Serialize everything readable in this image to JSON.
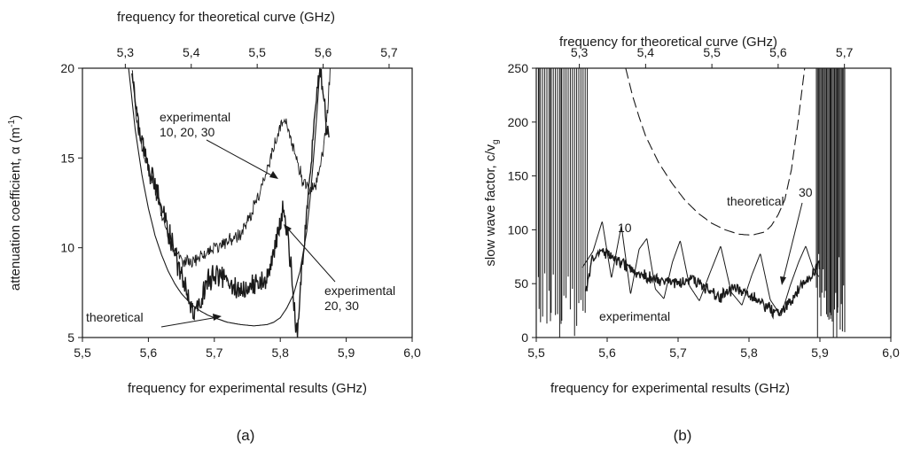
{
  "chart_data": [
    {
      "type": "line",
      "panel_label": "(a)",
      "xlabel": "frequency for experimental results (GHz)",
      "x_top_label": "frequency for theoretical curve (GHz)",
      "ylabel_main": "attenuation coefficient, α  (m",
      "ylabel_sup": "-1",
      "ylabel_end": ")",
      "xlim": [
        5.5,
        6.0
      ],
      "x_top_lim": [
        5.235,
        5.735
      ],
      "ylim": [
        5,
        20
      ],
      "xticks": [
        "5,5",
        "5,6",
        "5,7",
        "5,8",
        "5,9",
        "6,0"
      ],
      "xtick_values": [
        5.5,
        5.6,
        5.7,
        5.8,
        5.9,
        6.0
      ],
      "x_top_ticks": [
        "5,3",
        "5,4",
        "5,5",
        "5,6",
        "5,7"
      ],
      "x_top_tick_values": [
        5.3,
        5.4,
        5.5,
        5.6,
        5.7
      ],
      "yticks": [
        "5",
        "10",
        "15",
        "20"
      ],
      "ytick_values": [
        5,
        10,
        15,
        20
      ],
      "grid": false,
      "series": [
        {
          "id": "exp-10-20-30",
          "style": "noisy-thin",
          "x": [
            5.575,
            5.578,
            5.585,
            5.595,
            5.605,
            5.615,
            5.625,
            5.635,
            5.645,
            5.655,
            5.665,
            5.675,
            5.685,
            5.695,
            5.705,
            5.715,
            5.725,
            5.735,
            5.745,
            5.755,
            5.765,
            5.775,
            5.785,
            5.795,
            5.805,
            5.815,
            5.825,
            5.835,
            5.845,
            5.855,
            5.865,
            5.872,
            5.876
          ],
          "y": [
            20,
            18.5,
            16.5,
            15,
            13.8,
            12.6,
            11.3,
            10.2,
            9.6,
            9.3,
            9.2,
            9.4,
            9.6,
            9.9,
            10.1,
            10.3,
            10.5,
            10.6,
            11.1,
            11.8,
            12.8,
            13.8,
            14.9,
            16.2,
            17.3,
            16.3,
            14.8,
            13.6,
            13.2,
            13.6,
            15.4,
            17.8,
            20
          ]
        },
        {
          "id": "exp-20-30",
          "style": "noisy-thick",
          "x": [
            5.575,
            5.582,
            5.59,
            5.6,
            5.61,
            5.62,
            5.63,
            5.64,
            5.65,
            5.66,
            5.67,
            5.68,
            5.69,
            5.7,
            5.71,
            5.72,
            5.73,
            5.74,
            5.75,
            5.76,
            5.77,
            5.78,
            5.79,
            5.8,
            5.805,
            5.81,
            5.815,
            5.82,
            5.823,
            5.826,
            5.83,
            5.838,
            5.845,
            5.85,
            5.855,
            5.86,
            5.865,
            5.87,
            5.874
          ],
          "y": [
            20,
            17.5,
            15.8,
            14.4,
            13.5,
            12.3,
            11,
            9.8,
            8.3,
            7.2,
            6.4,
            7,
            8.1,
            8.6,
            8.3,
            8,
            7.8,
            7.6,
            7.6,
            7.9,
            8.2,
            8.4,
            9.6,
            11.6,
            12.2,
            11.2,
            9.4,
            7.2,
            5.6,
            5.2,
            7.4,
            11,
            14,
            16.5,
            18.5,
            20,
            19,
            17,
            16.2
          ]
        },
        {
          "id": "theoretical",
          "style": "smooth",
          "x": [
            5.57,
            5.58,
            5.59,
            5.6,
            5.61,
            5.62,
            5.63,
            5.64,
            5.65,
            5.66,
            5.67,
            5.68,
            5.69,
            5.7,
            5.72,
            5.74,
            5.76,
            5.78,
            5.79,
            5.8,
            5.81,
            5.82,
            5.83,
            5.84,
            5.845,
            5.85,
            5.855,
            5.86,
            5.865
          ],
          "y": [
            20,
            16.6,
            14.1,
            12.2,
            10.7,
            9.6,
            8.7,
            8,
            7.45,
            7.05,
            6.7,
            6.45,
            6.25,
            6.1,
            5.85,
            5.72,
            5.65,
            5.72,
            5.85,
            6.1,
            6.65,
            7.4,
            8.7,
            10.9,
            12.6,
            14.8,
            17.2,
            20,
            20
          ]
        }
      ],
      "annotations": [
        {
          "lines": [
            "experimental",
            "10, 20, 30"
          ]
        },
        {
          "lines": [
            "experimental",
            "20, 30"
          ]
        },
        {
          "lines": [
            "theoretical"
          ]
        }
      ]
    },
    {
      "type": "line",
      "panel_label": "(b)",
      "xlabel": "frequency for experimental results (GHz)",
      "x_top_label": "frequency for theoretical curve (GHz)",
      "ylabel_main": "slow wave factor, c/v",
      "ylabel_sub": "g",
      "xlim": [
        5.5,
        6.0
      ],
      "x_top_lim": [
        5.235,
        5.77
      ],
      "ylim": [
        0,
        250
      ],
      "xticks": [
        "5,5",
        "5,6",
        "5,7",
        "5,8",
        "5,9",
        "6,0"
      ],
      "xtick_values": [
        5.5,
        5.6,
        5.7,
        5.8,
        5.9,
        6.0
      ],
      "x_top_ticks": [
        "5,3",
        "5,4",
        "5,5",
        "5,6",
        "5,7"
      ],
      "x_top_tick_values": [
        5.3,
        5.4,
        5.5,
        5.6,
        5.7
      ],
      "yticks": [
        "0",
        "50",
        "100",
        "150",
        "200",
        "250"
      ],
      "ytick_values": [
        0,
        50,
        100,
        150,
        200,
        250
      ],
      "grid": false,
      "series": [
        {
          "id": "experimental",
          "style": "noisy-thick",
          "x": [
            5.57,
            5.58,
            5.59,
            5.6,
            5.62,
            5.64,
            5.66,
            5.68,
            5.7,
            5.72,
            5.74,
            5.76,
            5.78,
            5.8,
            5.82,
            5.84,
            5.855,
            5.87,
            5.885,
            5.9
          ],
          "y": [
            45,
            75,
            80,
            78,
            70,
            60,
            55,
            52,
            50,
            55,
            45,
            38,
            45,
            40,
            30,
            22,
            30,
            45,
            55,
            70
          ]
        },
        {
          "id": "run-10",
          "style": "oscillating",
          "x": [
            5.565,
            5.58,
            5.593,
            5.606,
            5.62,
            5.633,
            5.645,
            5.656,
            5.668,
            5.68,
            5.692,
            5.703,
            5.716,
            5.73,
            5.745,
            5.76,
            5.775,
            5.79,
            5.804,
            5.816,
            5.83,
            5.845,
            5.858,
            5.87,
            5.88,
            5.89,
            5.9
          ],
          "y": [
            65,
            80,
            108,
            55,
            104,
            40,
            82,
            92,
            45,
            36,
            70,
            90,
            48,
            34,
            60,
            85,
            42,
            30,
            58,
            78,
            35,
            20,
            48,
            70,
            85,
            65,
            55
          ]
        },
        {
          "id": "theoretical",
          "style": "dashed",
          "x": [
            5.37,
            5.38,
            5.39,
            5.4,
            5.42,
            5.44,
            5.46,
            5.48,
            5.5,
            5.52,
            5.54,
            5.56,
            5.58,
            5.59,
            5.6,
            5.61,
            5.62,
            5.63,
            5.64
          ],
          "y": [
            250,
            225,
            205,
            187,
            162,
            143,
            127,
            115,
            106,
            100,
            96,
            95,
            98,
            104,
            114,
            128,
            156,
            200,
            250
          ]
        },
        {
          "id": "spikes",
          "style": "spikes"
        }
      ],
      "annotations": [
        {
          "lines": [
            "10"
          ]
        },
        {
          "lines": [
            "theoretical"
          ]
        },
        {
          "lines": [
            "30"
          ]
        },
        {
          "lines": [
            "experimental"
          ]
        }
      ]
    }
  ]
}
